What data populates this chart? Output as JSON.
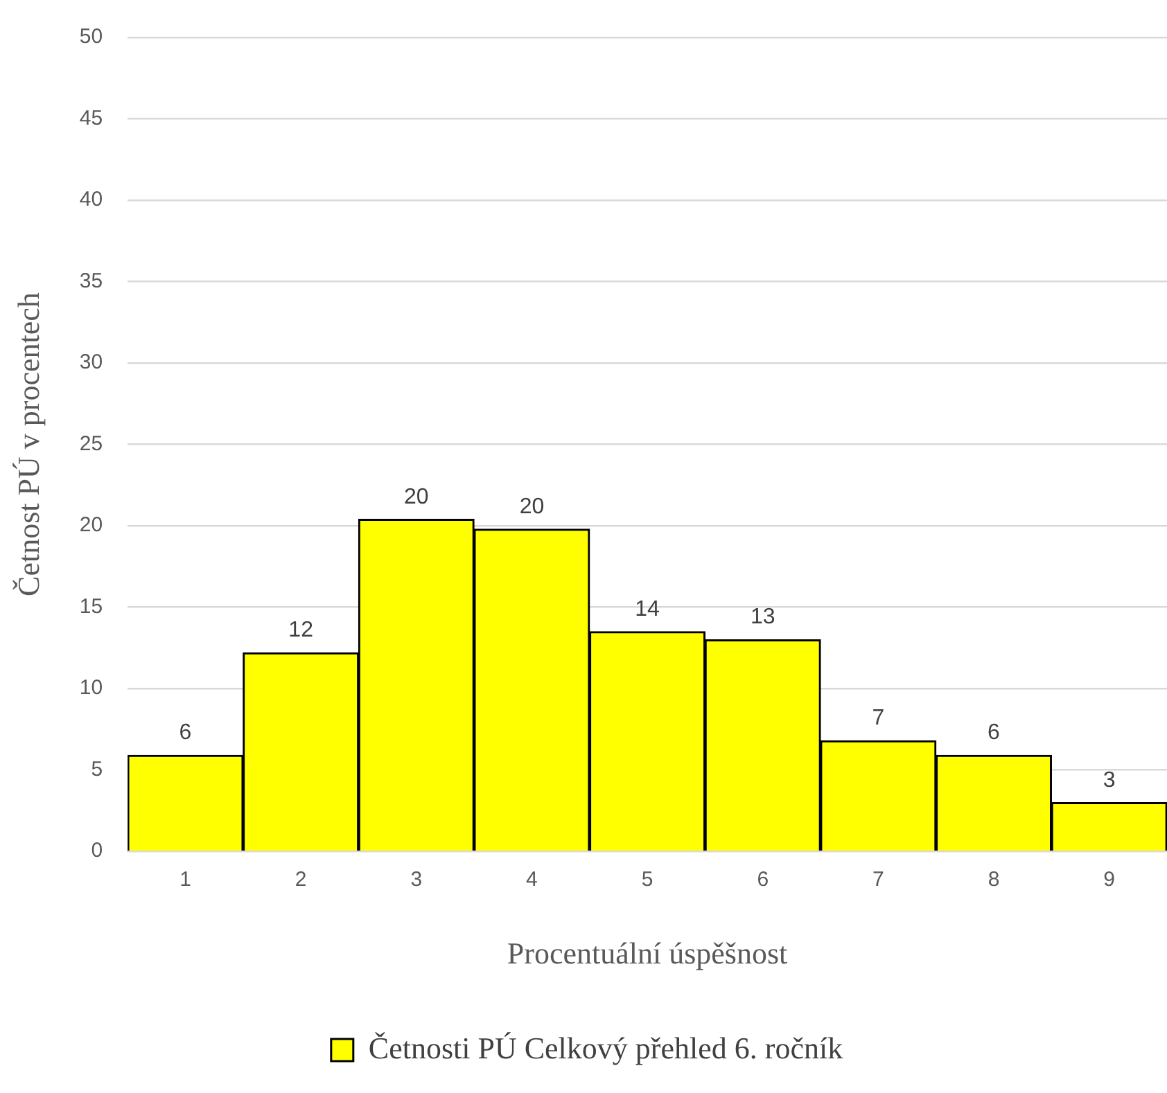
{
  "chart_data": {
    "type": "bar",
    "xlabel": "Procentuální úspěšnost",
    "ylabel": "Četnost PÚ v procentech",
    "categories": [
      "1",
      "2",
      "3",
      "4",
      "5",
      "6",
      "7",
      "8",
      "9"
    ],
    "series": [
      {
        "name": "Četnosti PÚ Celkový přehled 6. ročník",
        "color": "#ffff00",
        "values": [
          5.9,
          12.2,
          20.4,
          19.8,
          13.5,
          13.0,
          6.8,
          5.9,
          3.0
        ],
        "value_labels": [
          "6",
          "12",
          "20",
          "20",
          "14",
          "13",
          "7",
          "6",
          "3"
        ]
      }
    ],
    "ylim": [
      0,
      50
    ],
    "yticks": [
      0,
      5,
      10,
      15,
      20,
      25,
      30,
      35,
      40,
      45,
      50
    ],
    "grid": "y",
    "legend": "bottom"
  }
}
